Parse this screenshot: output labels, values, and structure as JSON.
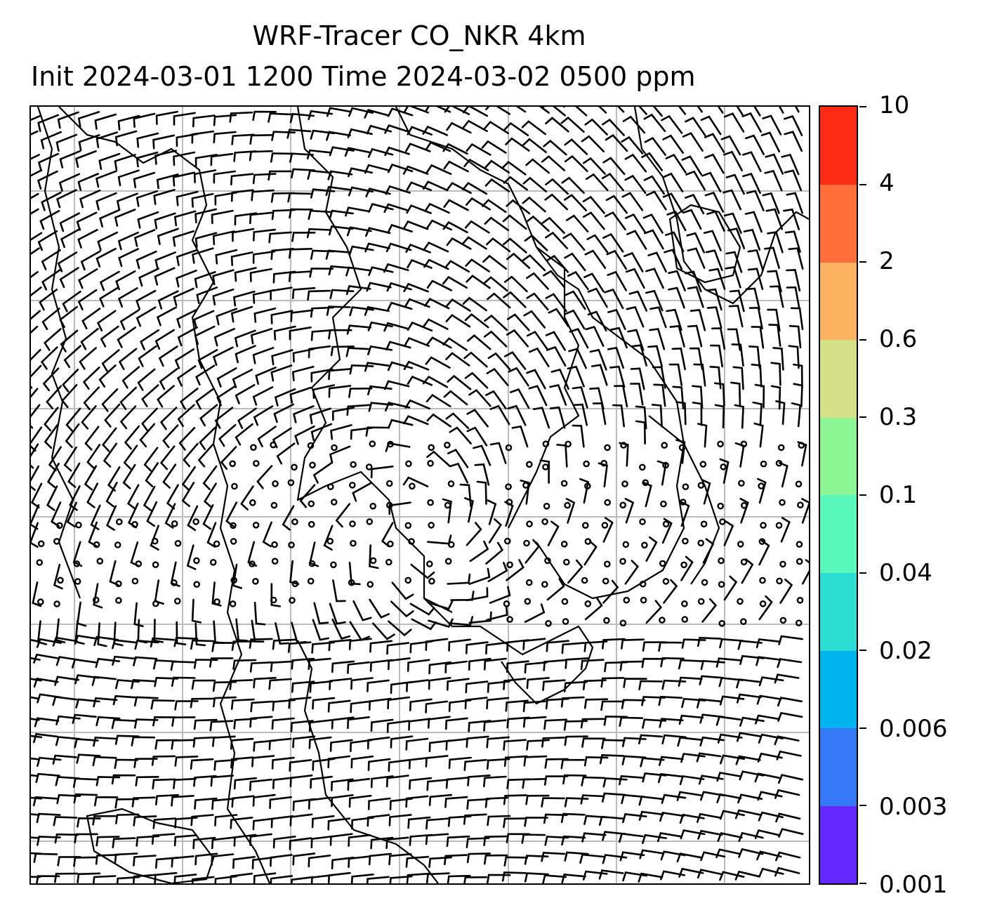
{
  "title": {
    "line1": "WRF-Tracer CO_NKR 4km",
    "line2": "Init 2024-03-01 1200 Time 2024-03-02 0500 ppm"
  },
  "map": {
    "type": "wind barbs over tracer concentration map",
    "gridlines": true,
    "grid_color": "#bbbbbb",
    "coastline_color": "#000000"
  },
  "colorbar": {
    "levels": [
      "0.001",
      "0.003",
      "0.006",
      "0.02",
      "0.04",
      "0.1",
      "0.3",
      "0.6",
      "2",
      "4",
      "10"
    ],
    "colors": [
      "#6428ff",
      "#3478f5",
      "#00b4ef",
      "#2ddcd2",
      "#5af7bc",
      "#8cf594",
      "#d3e085",
      "#fdb262",
      "#ff6e38",
      "#ff2a14"
    ]
  }
}
